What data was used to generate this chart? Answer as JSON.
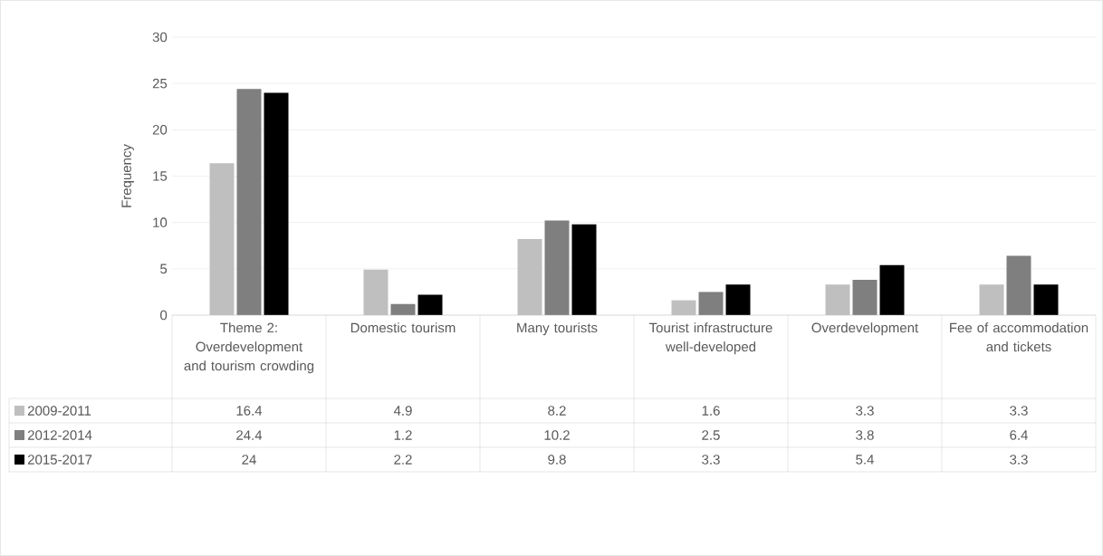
{
  "chart_data": {
    "type": "bar",
    "ylabel": "Frequency",
    "categories": [
      "Theme 2: Overdevelopment and tourism crowding",
      "Domestic tourism",
      "Many tourists",
      "Tourist infrastructure well-developed",
      "Overdevelopment",
      "Fee of accommodation and tickets"
    ],
    "series": [
      {
        "name": "2009-2011",
        "color": "#bfbfbf",
        "values": [
          16.4,
          4.9,
          8.2,
          1.6,
          3.3,
          3.3
        ]
      },
      {
        "name": "2012-2014",
        "color": "#7f7f7f",
        "values": [
          24.4,
          1.2,
          10.2,
          2.5,
          3.8,
          6.4
        ]
      },
      {
        "name": "2015-2017",
        "color": "#000000",
        "values": [
          24,
          2.2,
          9.8,
          3.3,
          5.4,
          3.3
        ]
      }
    ],
    "ylim": [
      0,
      30
    ],
    "yticks": [
      0,
      5,
      10,
      15,
      20,
      25,
      30
    ],
    "grid": "y",
    "legend": "bottom",
    "data_labels": true
  }
}
